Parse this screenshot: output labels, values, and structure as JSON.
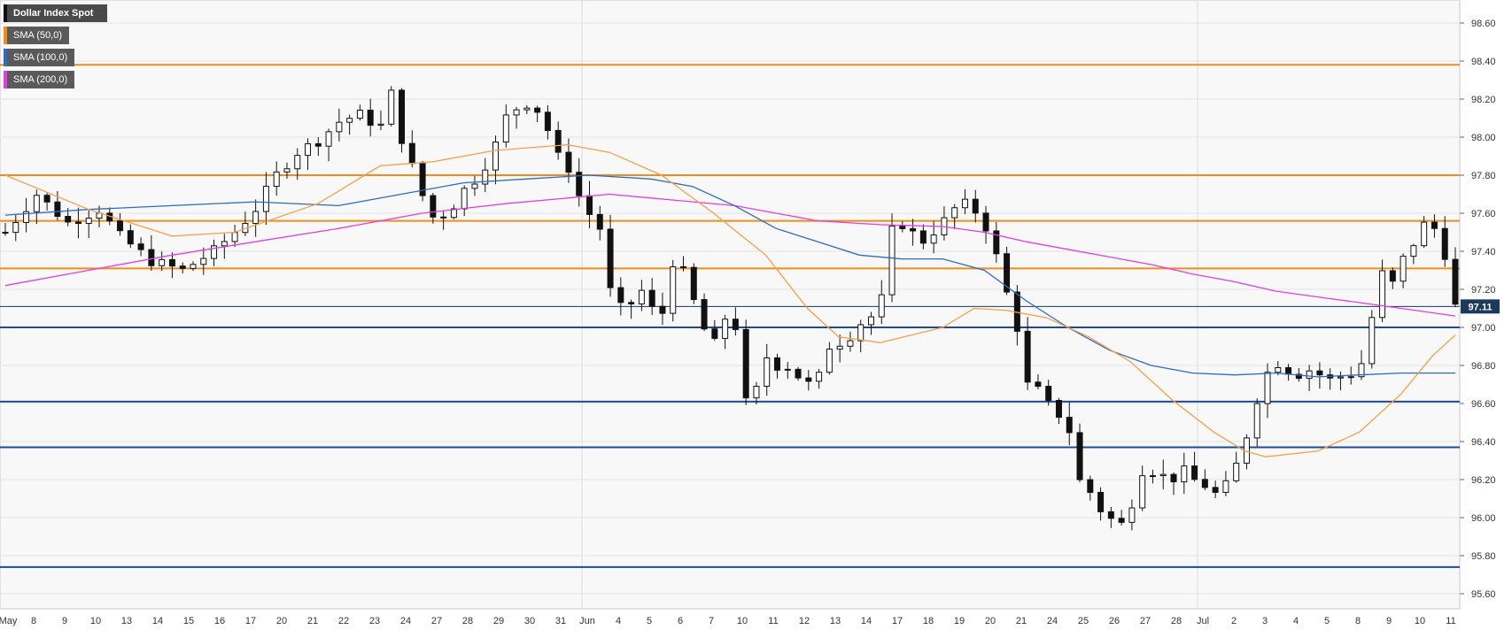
{
  "chart_data": {
    "type": "candlestick",
    "title": "Dollar Index Spot",
    "legend": [
      {
        "label": "Dollar Index Spot",
        "color": "#111111"
      },
      {
        "label": "SMA (50,0)",
        "color": "#f08c1e"
      },
      {
        "label": "SMA (100,0)",
        "color": "#2e6bc0"
      },
      {
        "label": "SMA (200,0)",
        "color": "#e040e0"
      }
    ],
    "y_axis": {
      "min": 95.5,
      "max": 98.7,
      "ticks": [
        "98.60",
        "98.40",
        "98.20",
        "98.00",
        "97.80",
        "97.60",
        "97.40",
        "97.20",
        "97.00",
        "96.80",
        "96.60",
        "96.40",
        "96.20",
        "96.00",
        "95.80",
        "95.60"
      ]
    },
    "x_axis": {
      "labels": [
        "May",
        "8",
        "9",
        "10",
        "13",
        "14",
        "15",
        "16",
        "17",
        "20",
        "21",
        "22",
        "23",
        "24",
        "27",
        "28",
        "29",
        "30",
        "31",
        "Jun",
        "4",
        "5",
        "6",
        "7",
        "10",
        "11",
        "12",
        "13",
        "14",
        "17",
        "18",
        "19",
        "20",
        "21",
        "24",
        "25",
        "26",
        "27",
        "28",
        "Jul",
        "2",
        "3",
        "4",
        "5",
        "8",
        "9",
        "10",
        "11"
      ]
    },
    "current_price": {
      "value": 97.11,
      "label": "97.11"
    },
    "resistance_levels": [
      98.38,
      97.8,
      97.56,
      97.31
    ],
    "support_levels": [
      97.0,
      96.61,
      96.37,
      95.74
    ],
    "ohlc_anchors": [
      [
        0,
        97.5
      ],
      [
        3,
        97.7
      ],
      [
        6,
        97.55
      ],
      [
        9,
        97.62
      ],
      [
        11,
        97.48
      ],
      [
        14,
        97.35
      ],
      [
        17,
        97.3
      ],
      [
        20,
        97.4
      ],
      [
        22,
        97.5
      ],
      [
        24,
        97.62
      ],
      [
        26,
        97.8
      ],
      [
        28,
        97.92
      ],
      [
        30,
        97.98
      ],
      [
        32,
        98.08
      ],
      [
        34,
        98.12
      ],
      [
        36,
        98.05
      ],
      [
        37,
        98.22
      ],
      [
        37.6,
        98.3
      ],
      [
        38,
        98.0
      ],
      [
        39,
        97.85
      ],
      [
        40,
        97.7
      ],
      [
        41,
        97.58
      ],
      [
        42.5,
        97.6
      ],
      [
        44,
        97.72
      ],
      [
        45.5,
        97.8
      ],
      [
        47,
        97.95
      ],
      [
        48,
        98.1
      ],
      [
        49,
        98.15
      ],
      [
        50,
        98.18
      ],
      [
        51,
        98.15
      ],
      [
        52,
        98.05
      ],
      [
        53,
        97.9
      ],
      [
        54,
        97.85
      ],
      [
        55,
        97.7
      ],
      [
        56,
        97.6
      ],
      [
        57,
        97.55
      ],
      [
        58,
        97.2
      ],
      [
        59,
        97.1
      ],
      [
        60,
        97.12
      ],
      [
        61,
        97.2
      ],
      [
        62,
        97.1
      ],
      [
        63,
        97.05
      ],
      [
        64,
        97.35
      ],
      [
        65,
        97.3
      ],
      [
        66,
        97.15
      ],
      [
        67,
        97.0
      ],
      [
        68,
        96.9
      ],
      [
        69,
        97.05
      ],
      [
        70,
        97.05
      ],
      [
        71,
        96.6
      ],
      [
        72,
        96.65
      ],
      [
        73,
        96.85
      ],
      [
        74,
        96.8
      ],
      [
        75,
        96.8
      ],
      [
        76,
        96.75
      ],
      [
        77,
        96.7
      ],
      [
        78,
        96.72
      ],
      [
        79,
        96.9
      ],
      [
        80,
        96.92
      ],
      [
        81,
        96.95
      ],
      [
        82,
        97.02
      ],
      [
        83,
        97.05
      ],
      [
        84,
        97.1
      ],
      [
        85,
        97.5
      ],
      [
        86,
        97.55
      ],
      [
        87,
        97.5
      ],
      [
        88,
        97.45
      ],
      [
        89,
        97.5
      ],
      [
        90,
        97.55
      ],
      [
        91,
        97.62
      ],
      [
        92,
        97.65
      ],
      [
        93,
        97.62
      ],
      [
        94,
        97.55
      ],
      [
        95,
        97.4
      ],
      [
        96,
        97.2
      ],
      [
        97,
        97.05
      ],
      [
        98,
        96.7
      ],
      [
        99,
        96.68
      ],
      [
        100,
        96.6
      ],
      [
        101,
        96.55
      ],
      [
        102,
        96.5
      ],
      [
        103,
        96.2
      ],
      [
        104,
        96.15
      ],
      [
        105,
        96.05
      ],
      [
        106,
        96.0
      ],
      [
        107,
        95.95
      ],
      [
        108,
        96.05
      ],
      [
        109,
        96.25
      ],
      [
        110,
        96.25
      ],
      [
        111,
        96.22
      ],
      [
        112,
        96.2
      ],
      [
        113,
        96.25
      ],
      [
        114,
        96.2
      ],
      [
        115,
        96.18
      ],
      [
        116,
        96.12
      ],
      [
        117,
        96.15
      ],
      [
        118,
        96.25
      ],
      [
        119,
        96.4
      ],
      [
        120,
        96.6
      ],
      [
        121,
        96.75
      ],
      [
        122,
        96.82
      ],
      [
        123,
        96.78
      ],
      [
        124,
        96.75
      ],
      [
        125,
        96.78
      ],
      [
        126,
        96.76
      ],
      [
        127,
        96.72
      ],
      [
        128,
        96.74
      ],
      [
        129,
        96.75
      ],
      [
        130,
        96.78
      ],
      [
        131,
        96.95
      ],
      [
        131.7,
        97.33
      ],
      [
        132.5,
        97.25
      ],
      [
        133.5,
        97.22
      ],
      [
        134.3,
        97.38
      ],
      [
        135.3,
        97.45
      ],
      [
        136.3,
        97.55
      ],
      [
        137.2,
        97.52
      ],
      [
        138,
        97.5
      ],
      [
        138.7,
        97.1
      ],
      [
        139.2,
        97.11
      ]
    ],
    "sma50_values": [
      [
        0,
        97.8
      ],
      [
        8,
        97.62
      ],
      [
        16,
        97.48
      ],
      [
        22,
        97.5
      ],
      [
        30,
        97.65
      ],
      [
        36,
        97.85
      ],
      [
        41,
        97.87
      ],
      [
        47,
        97.93
      ],
      [
        54,
        97.96
      ],
      [
        58,
        97.92
      ],
      [
        63,
        97.8
      ],
      [
        68,
        97.6
      ],
      [
        73,
        97.38
      ],
      [
        77,
        97.1
      ],
      [
        80,
        96.95
      ],
      [
        84,
        96.92
      ],
      [
        87,
        96.96
      ],
      [
        90,
        97.0
      ],
      [
        93,
        97.1
      ],
      [
        96,
        97.09
      ],
      [
        100,
        97.05
      ],
      [
        104,
        96.95
      ],
      [
        108,
        96.82
      ],
      [
        112,
        96.62
      ],
      [
        116,
        96.45
      ],
      [
        119,
        96.35
      ],
      [
        121,
        96.32
      ],
      [
        126,
        96.35
      ],
      [
        130,
        96.45
      ],
      [
        134,
        96.65
      ],
      [
        137,
        96.85
      ],
      [
        139.2,
        96.96
      ]
    ],
    "sma100_values": [
      [
        0,
        97.59
      ],
      [
        8,
        97.62
      ],
      [
        16,
        97.64
      ],
      [
        24,
        97.66
      ],
      [
        32,
        97.64
      ],
      [
        38,
        97.7
      ],
      [
        44,
        97.76
      ],
      [
        50,
        97.78
      ],
      [
        56,
        97.8
      ],
      [
        62,
        97.78
      ],
      [
        66,
        97.74
      ],
      [
        70,
        97.64
      ],
      [
        74,
        97.52
      ],
      [
        78,
        97.45
      ],
      [
        82,
        97.38
      ],
      [
        86,
        97.36
      ],
      [
        90,
        97.36
      ],
      [
        94,
        97.3
      ],
      [
        98,
        97.14
      ],
      [
        102,
        97.0
      ],
      [
        106,
        96.88
      ],
      [
        110,
        96.8
      ],
      [
        114,
        96.76
      ],
      [
        118,
        96.75
      ],
      [
        122,
        96.76
      ],
      [
        126,
        96.74
      ],
      [
        130,
        96.75
      ],
      [
        134,
        96.76
      ],
      [
        139.2,
        96.76
      ]
    ],
    "sma200_values": [
      [
        0,
        97.22
      ],
      [
        8,
        97.3
      ],
      [
        16,
        97.38
      ],
      [
        24,
        97.45
      ],
      [
        32,
        97.52
      ],
      [
        40,
        97.6
      ],
      [
        48,
        97.65
      ],
      [
        54,
        97.68
      ],
      [
        58,
        97.7
      ],
      [
        62,
        97.68
      ],
      [
        66,
        97.66
      ],
      [
        70,
        97.64
      ],
      [
        74,
        97.6
      ],
      [
        78,
        97.56
      ],
      [
        84,
        97.54
      ],
      [
        90,
        97.53
      ],
      [
        94,
        97.5
      ],
      [
        98,
        97.45
      ],
      [
        102,
        97.41
      ],
      [
        106,
        97.37
      ],
      [
        110,
        97.33
      ],
      [
        114,
        97.28
      ],
      [
        118,
        97.24
      ],
      [
        122,
        97.19
      ],
      [
        126,
        97.16
      ],
      [
        130,
        97.13
      ],
      [
        134,
        97.1
      ],
      [
        139.2,
        97.06
      ]
    ],
    "colors": {
      "resistance": "#f08c1e",
      "support": "#1e4a94",
      "sma50": "#f5a04a",
      "sma100": "#2e6bc0",
      "sma200": "#e040e0",
      "grid": "#e4e4e4",
      "price_tag_bg": "#1b3a5c"
    },
    "grid": true
  }
}
